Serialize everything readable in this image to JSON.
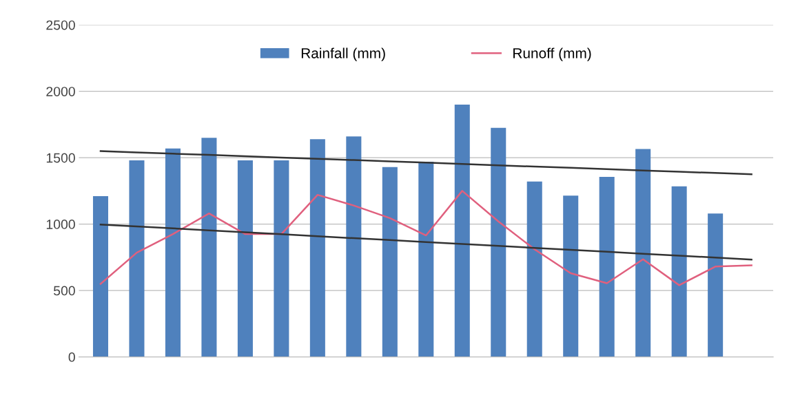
{
  "chart_data": {
    "type": "bar",
    "categories": [
      null,
      null,
      null,
      null,
      null,
      null,
      null,
      null,
      null,
      null,
      null,
      null,
      null,
      null,
      null,
      null,
      null,
      null,
      null
    ],
    "series": [
      {
        "name": "Rainfall (mm)",
        "color": "#4f81bd",
        "values": [
          1210,
          1480,
          1570,
          1650,
          1480,
          1480,
          1640,
          1660,
          1430,
          1470,
          1900,
          1725,
          1320,
          1215,
          1355,
          1565,
          1285,
          1080,
          null
        ]
      },
      {
        "name": "Runoff (mm)",
        "type": "line",
        "color": "#e0607e",
        "values": [
          550,
          785,
          925,
          1080,
          925,
          925,
          1220,
          1140,
          1045,
          915,
          1250,
          1020,
          810,
          630,
          555,
          735,
          540,
          680,
          690
        ]
      },
      {
        "type": "line",
        "color": "#333333",
        "values": [
          1550,
          1540,
          1530,
          1521,
          1511,
          1501,
          1492,
          1482,
          1472,
          1463,
          1453,
          1443,
          1433,
          1424,
          1414,
          1404,
          1394,
          1385,
          1375
        ]
      },
      {
        "type": "line",
        "color": "#333333",
        "values": [
          997,
          982,
          968,
          953,
          938,
          924,
          909,
          894,
          880,
          865,
          850,
          836,
          821,
          806,
          792,
          777,
          762,
          748,
          733
        ]
      }
    ],
    "ylim": [
      0,
      2500
    ],
    "yticks": [
      0,
      500,
      1000,
      1500,
      2000,
      2500
    ],
    "grid": "y",
    "legend": "top"
  }
}
